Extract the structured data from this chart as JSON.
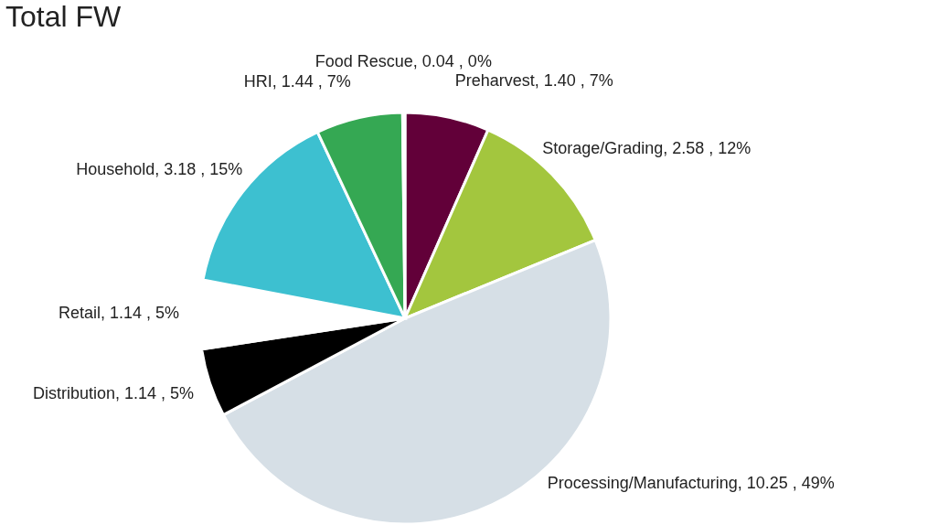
{
  "chart_data": {
    "type": "pie",
    "title": "Total FW",
    "categories": [
      "Preharvest",
      "Storage/Grading",
      "Processing/Manufacturing",
      "Distribution",
      "Retail",
      "Household",
      "HRI",
      "Food Rescue"
    ],
    "values": [
      1.4,
      2.58,
      10.25,
      1.14,
      1.14,
      3.18,
      1.44,
      0.04
    ],
    "value_labels": [
      "1.40 , 7%",
      "2.58 , 12%",
      "10.25 , 49%",
      "1.14 , 5%",
      "1.14 , 5%",
      "3.18 , 15%",
      "1.44 , 7%",
      "0.04 , 0%"
    ],
    "colors": [
      "#620039",
      "#a3c63e",
      "#d6dfe6",
      "#000000",
      "#ffffff",
      "#3dc0d0",
      "#35a853",
      "#35a853"
    ]
  }
}
